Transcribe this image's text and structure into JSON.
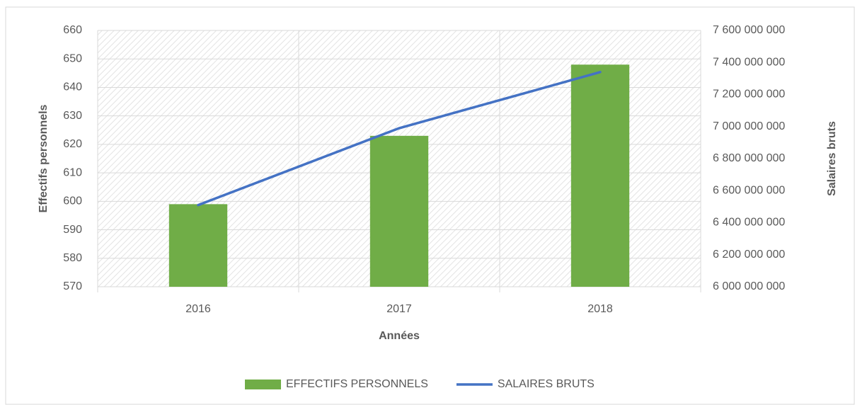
{
  "chart_data": {
    "type": "combo",
    "x_label": "Années",
    "y_label": "Effectifs personnels",
    "y2_label": "Salaires bruts",
    "categories": [
      "2016",
      "2017",
      "2018"
    ],
    "series": [
      {
        "name": "EFFECTIFS PERSONNELS",
        "type": "bar",
        "color": "#70ad47",
        "values": [
          599,
          623,
          648
        ]
      },
      {
        "name": "SALAIRES BRUTS",
        "type": "line",
        "axis": "y2",
        "color": "#4472c4",
        "values": [
          6510000000,
          6990000000,
          7340000000
        ]
      }
    ],
    "ylim": [
      570,
      660
    ],
    "yticks": [
      570,
      580,
      590,
      600,
      610,
      620,
      630,
      640,
      650,
      660
    ],
    "y2lim": [
      6000000000,
      7600000000
    ],
    "y2ticks": [
      {
        "value": 6000000000,
        "label": "6 000 000 000"
      },
      {
        "value": 6200000000,
        "label": "6 200 000 000"
      },
      {
        "value": 6400000000,
        "label": "6 400 000 000"
      },
      {
        "value": 6600000000,
        "label": "6 600 000 000"
      },
      {
        "value": 6800000000,
        "label": "6 800 000 000"
      },
      {
        "value": 7000000000,
        "label": "7 000 000 000"
      },
      {
        "value": 7200000000,
        "label": "7 200 000 000"
      },
      {
        "value": 7400000000,
        "label": "7 400 000 000"
      },
      {
        "value": 7600000000,
        "label": "7 600 000 000"
      }
    ],
    "grid": true,
    "legend": "bottom"
  }
}
